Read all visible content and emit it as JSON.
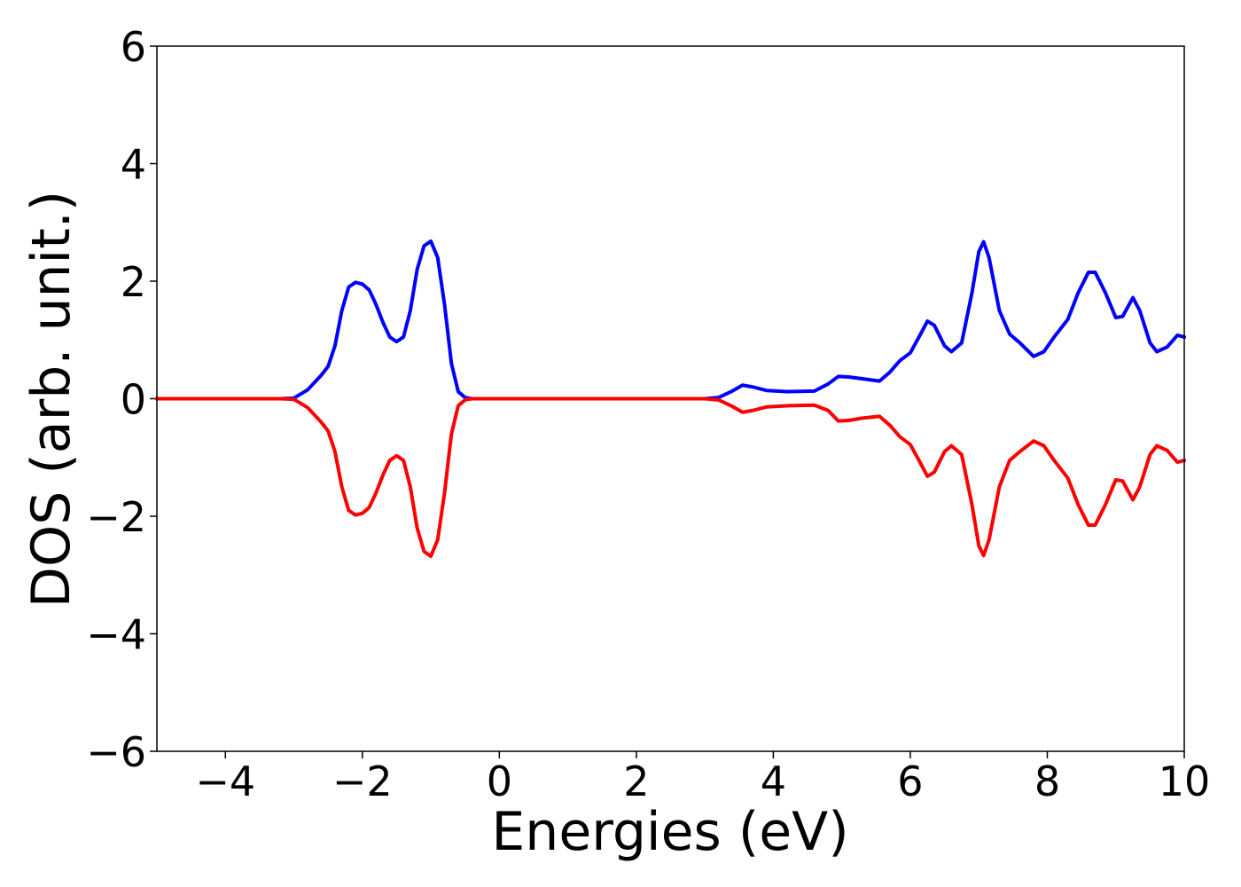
{
  "chart_data": {
    "type": "line",
    "xlabel": "Energies (eV)",
    "ylabel": "DOS (arb. unit.)",
    "x": [
      -5,
      -3.2,
      -3.0,
      -2.8,
      -2.6,
      -2.5,
      -2.4,
      -2.3,
      -2.2,
      -2.1,
      -2.0,
      -1.9,
      -1.8,
      -1.7,
      -1.6,
      -1.5,
      -1.4,
      -1.3,
      -1.2,
      -1.1,
      -1.0,
      -0.9,
      -0.8,
      -0.7,
      -0.6,
      -0.5,
      -0.4,
      3.0,
      3.2,
      3.4,
      3.55,
      3.7,
      3.9,
      4.2,
      4.6,
      4.8,
      4.95,
      5.1,
      5.3,
      5.55,
      5.7,
      5.85,
      6.0,
      6.15,
      6.25,
      6.35,
      6.5,
      6.6,
      6.75,
      6.9,
      7.0,
      7.07,
      7.15,
      7.3,
      7.45,
      7.6,
      7.8,
      7.95,
      8.1,
      8.3,
      8.45,
      8.6,
      8.7,
      8.85,
      9.0,
      9.1,
      9.25,
      9.35,
      9.5,
      9.6,
      9.75,
      9.9,
      10.0
    ],
    "series": [
      {
        "color": "#0000ff",
        "values": [
          0,
          0,
          0.01,
          0.15,
          0.4,
          0.55,
          0.9,
          1.5,
          1.9,
          1.98,
          1.95,
          1.85,
          1.6,
          1.3,
          1.05,
          0.97,
          1.05,
          1.5,
          2.2,
          2.6,
          2.68,
          2.4,
          1.6,
          0.6,
          0.12,
          0.02,
          0,
          0,
          0.02,
          0.13,
          0.23,
          0.2,
          0.14,
          0.12,
          0.13,
          0.25,
          0.38,
          0.37,
          0.34,
          0.3,
          0.45,
          0.65,
          0.78,
          1.1,
          1.32,
          1.25,
          0.9,
          0.8,
          0.95,
          1.8,
          2.5,
          2.67,
          2.4,
          1.5,
          1.1,
          0.95,
          0.72,
          0.8,
          1.05,
          1.35,
          1.8,
          2.15,
          2.15,
          1.8,
          1.38,
          1.4,
          1.72,
          1.5,
          0.95,
          0.8,
          0.88,
          1.08,
          1.05
        ]
      },
      {
        "color": "#ff0000",
        "values": [
          0,
          0,
          -0.01,
          -0.15,
          -0.4,
          -0.55,
          -0.9,
          -1.5,
          -1.9,
          -1.98,
          -1.95,
          -1.85,
          -1.6,
          -1.3,
          -1.05,
          -0.97,
          -1.05,
          -1.5,
          -2.2,
          -2.6,
          -2.68,
          -2.4,
          -1.6,
          -0.6,
          -0.12,
          -0.02,
          0,
          0,
          -0.02,
          -0.13,
          -0.23,
          -0.2,
          -0.14,
          -0.12,
          -0.11,
          -0.2,
          -0.38,
          -0.37,
          -0.33,
          -0.3,
          -0.45,
          -0.65,
          -0.78,
          -1.1,
          -1.32,
          -1.25,
          -0.9,
          -0.8,
          -0.95,
          -1.8,
          -2.5,
          -2.67,
          -2.4,
          -1.5,
          -1.05,
          -0.9,
          -0.72,
          -0.8,
          -1.05,
          -1.35,
          -1.8,
          -2.15,
          -2.15,
          -1.8,
          -1.38,
          -1.4,
          -1.72,
          -1.5,
          -0.95,
          -0.8,
          -0.88,
          -1.08,
          -1.05
        ]
      }
    ],
    "xlim": [
      -5,
      10
    ],
    "xticks": [
      {
        "value": -4,
        "label": "−4"
      },
      {
        "value": -2,
        "label": "−2"
      },
      0,
      2,
      4,
      6,
      8,
      10
    ],
    "ylim": [
      -6,
      6
    ],
    "yticks": [
      {
        "value": -6,
        "label": "−6"
      },
      {
        "value": -4,
        "label": "−4"
      },
      {
        "value": -2,
        "label": "−2"
      },
      0,
      2,
      4,
      6
    ]
  }
}
